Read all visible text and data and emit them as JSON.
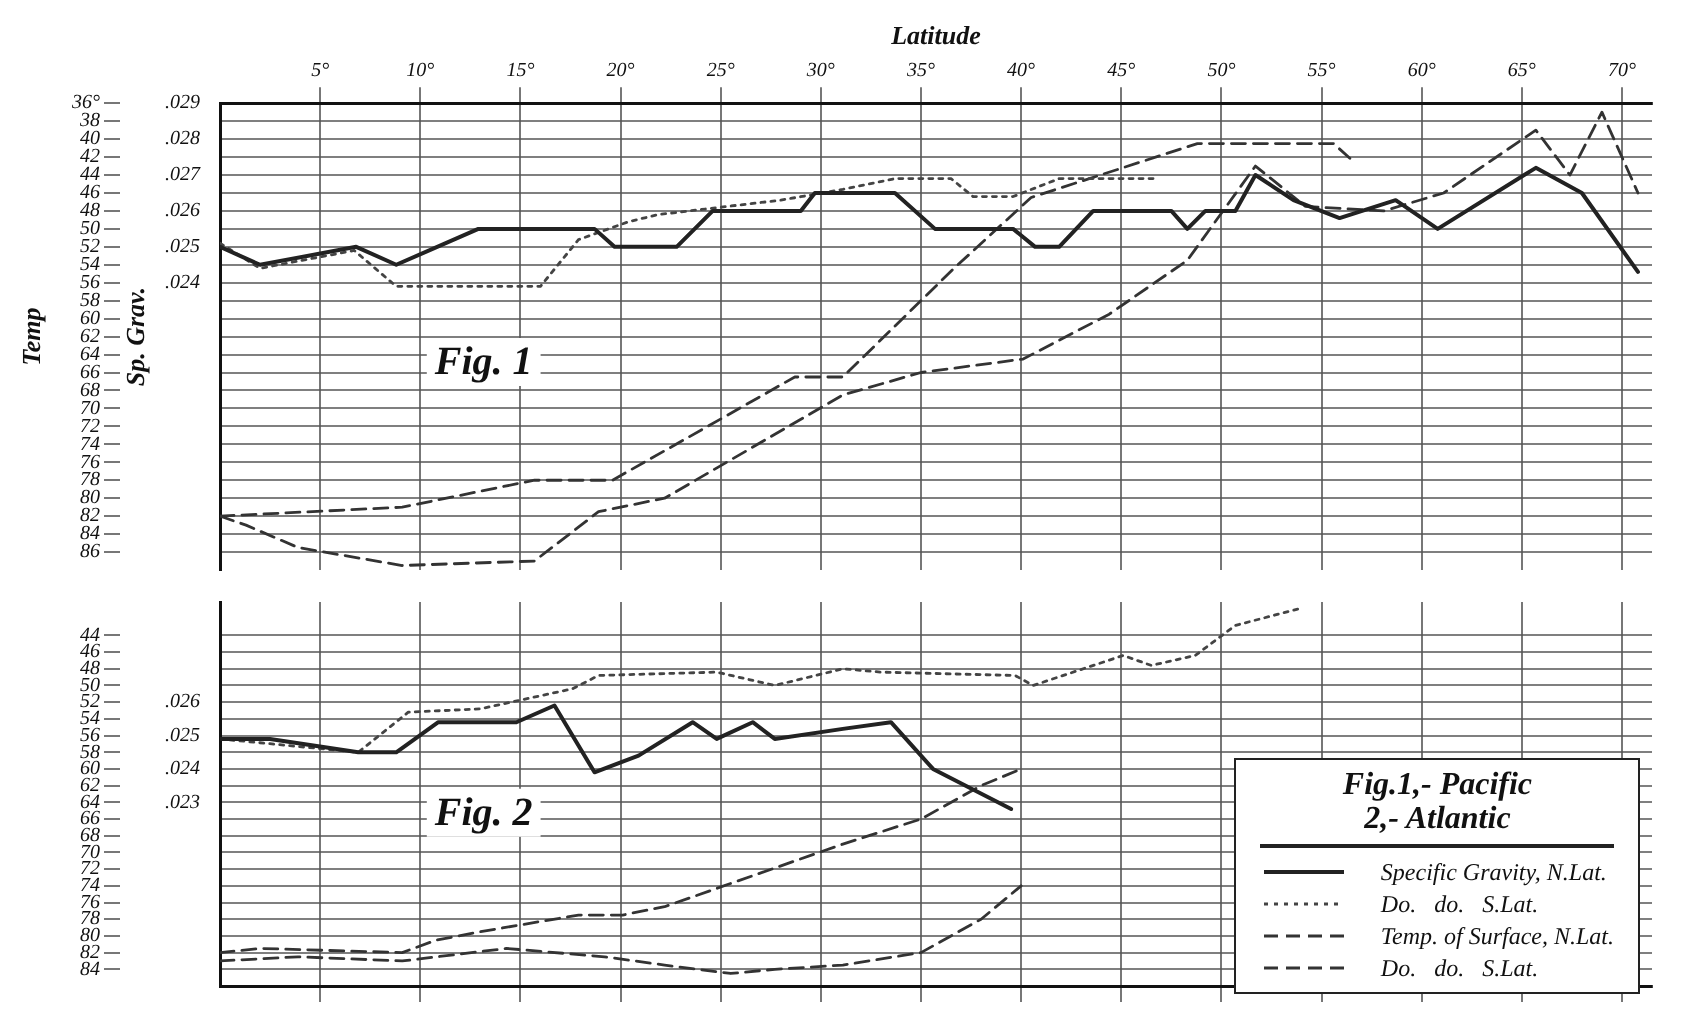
{
  "chart_data": [
    {
      "type": "line",
      "xlabel": "Latitude",
      "ylabel": "Temp",
      "y2label": "Sp. Grav.",
      "annotations": [
        "Fig. 1"
      ],
      "xlim": [
        0,
        71.5
      ],
      "xticks": [
        {
          "value": 5,
          "label": "5°"
        },
        {
          "value": 10,
          "label": "10°"
        },
        {
          "value": 15,
          "label": "15°"
        },
        {
          "value": 20,
          "label": "20°"
        },
        {
          "value": 25,
          "label": "25°"
        },
        {
          "value": 30,
          "label": "30°"
        },
        {
          "value": 35,
          "label": "35°"
        },
        {
          "value": 40,
          "label": "40°"
        },
        {
          "value": 45,
          "label": "45°"
        },
        {
          "value": 50,
          "label": "50°"
        },
        {
          "value": 55,
          "label": "55°"
        },
        {
          "value": 60,
          "label": "60°"
        },
        {
          "value": 65,
          "label": "65°"
        },
        {
          "value": 70,
          "label": "70°"
        }
      ],
      "ylim": [
        88,
        36
      ],
      "yticks": [
        {
          "value": 36,
          "label": "36°"
        },
        38,
        40,
        42,
        44,
        46,
        48,
        50,
        52,
        54,
        56,
        58,
        60,
        62,
        64,
        66,
        68,
        70,
        72,
        74,
        76,
        78,
        80,
        82,
        84,
        86
      ],
      "y2lim": [
        0.016,
        0.029
      ],
      "y2ticks": [
        {
          "value": 0.029,
          "label": ".029"
        },
        {
          "value": 0.028,
          "label": ".028"
        },
        {
          "value": 0.027,
          "label": ".027"
        },
        {
          "value": 0.026,
          "label": ".026"
        },
        {
          "value": 0.025,
          "label": ".025"
        },
        {
          "value": 0.024,
          "label": ".024"
        }
      ],
      "grid": true,
      "marker": "none",
      "legend": false,
      "series": [
        {
          "color": "#222222",
          "line_style": "solid",
          "axis": "y2",
          "x": [
            0,
            2,
            6.8,
            8.8,
            12.9,
            18.7,
            19.7,
            22.8,
            24.6,
            29,
            29.7,
            33.7,
            35.7,
            39.6,
            40.7,
            41.9,
            43.6,
            47.5,
            48.3,
            49.2,
            50.7,
            51.7,
            53.6,
            55.9,
            58.7,
            60.8,
            65.7,
            68,
            70.8
          ],
          "values": [
            0.025,
            0.0245,
            0.025,
            0.0245,
            0.0255,
            0.0255,
            0.025,
            0.025,
            0.026,
            0.026,
            0.0265,
            0.0265,
            0.0255,
            0.0255,
            0.025,
            0.025,
            0.026,
            0.026,
            0.0255,
            0.026,
            0.026,
            0.027,
            0.0263,
            0.0258,
            0.0263,
            0.0255,
            0.0272,
            0.0265,
            0.0243
          ]
        },
        {
          "color": "#444444",
          "line_style": "dotted",
          "axis": "y2",
          "x": [
            0,
            2,
            6.7,
            8.8,
            16,
            17.9,
            20.4,
            21.9,
            28,
            31.1,
            33.7,
            36.5,
            37.6,
            39.6,
            41.9,
            46.6
          ],
          "values": [
            0.0251,
            0.0244,
            0.0249,
            0.0239,
            0.0239,
            0.0252,
            0.0257,
            0.0259,
            0.0263,
            0.0266,
            0.0269,
            0.0269,
            0.0264,
            0.0264,
            0.0269,
            0.0269
          ]
        },
        {
          "color": "#333333",
          "line_style": "dashed",
          "x": [
            0,
            9.1,
            15.7,
            19.6,
            28.7,
            31.1,
            36.6,
            40.5,
            48.8,
            55.6,
            56.6
          ],
          "values": [
            82,
            81,
            78,
            78,
            66.5,
            66.5,
            54.5,
            46.5,
            40.5,
            40.5,
            42.5
          ]
        },
        {
          "color": "#333333",
          "line_style": "dashed",
          "x": [
            0,
            1.3,
            3.9,
            9.1,
            15.7,
            18.9,
            22.2,
            31.1,
            35,
            40.1,
            44.4,
            48.3,
            51.7,
            54.2,
            58.1,
            61.1,
            65.7,
            67.4,
            69,
            70.8
          ],
          "values": [
            82,
            83,
            85.5,
            87.5,
            87,
            81.5,
            80,
            68.5,
            66,
            64.5,
            59.5,
            53.5,
            43,
            47.5,
            48,
            46,
            39,
            44,
            37,
            46
          ]
        }
      ]
    },
    {
      "type": "line",
      "annotations": [
        "Fig. 2"
      ],
      "legend_title": "Fig.1,- Pacific\n2,- Atlantic",
      "legend": "bottom right",
      "tick_labels": "y",
      "xlim": [
        0,
        71.5
      ],
      "xticks": [
        5,
        10,
        15,
        20,
        25,
        30,
        35,
        40,
        45,
        50,
        55,
        60,
        65,
        70
      ],
      "ylim": [
        86,
        40
      ],
      "yticks": [
        44,
        46,
        48,
        50,
        52,
        54,
        56,
        58,
        60,
        62,
        64,
        66,
        68,
        70,
        72,
        74,
        76,
        78,
        80,
        82,
        84
      ],
      "y2lim": [
        0.0175,
        0.029
      ],
      "y2ticks": [
        {
          "value": 0.026,
          "label": ".026"
        },
        {
          "value": 0.025,
          "label": ".025"
        },
        {
          "value": 0.024,
          "label": ".024"
        },
        {
          "value": 0.023,
          "label": ".023"
        }
      ],
      "grid": true,
      "marker": "none",
      "series": [
        {
          "name": "Specific Gravity, N.Lat.",
          "color": "#222222",
          "line_style": "solid",
          "axis": "y2",
          "x": [
            0,
            2.5,
            6.9,
            8.8,
            10.9,
            14.8,
            16.7,
            18.7,
            20.9,
            23.6,
            24.8,
            26.6,
            27.7,
            31.1,
            33.5,
            35.6,
            39.5
          ],
          "values": [
            0.0249,
            0.0249,
            0.0245,
            0.0245,
            0.0254,
            0.0254,
            0.0259,
            0.0239,
            0.0244,
            0.0254,
            0.0249,
            0.0254,
            0.0249,
            0.0252,
            0.0254,
            0.024,
            0.0228
          ]
        },
        {
          "name": "Do.   do.   S.Lat.",
          "color": "#444444",
          "line_style": "dotted",
          "axis": "y2",
          "x": [
            0,
            6.9,
            9.4,
            13,
            17.6,
            18.9,
            24.8,
            27.7,
            31.1,
            33,
            39.7,
            40.6,
            45.1,
            46.5,
            48.7,
            50.7,
            53.9
          ],
          "values": [
            0.0249,
            0.0245,
            0.0257,
            0.0258,
            0.0264,
            0.0268,
            0.0269,
            0.0265,
            0.027,
            0.0269,
            0.0268,
            0.0265,
            0.0274,
            0.0271,
            0.0274,
            0.0283,
            0.0288
          ]
        },
        {
          "name": "Temp. of Surface, N.Lat.",
          "color": "#333333",
          "line_style": "dashed",
          "x": [
            0,
            2,
            9.1,
            10.8,
            13,
            17.9,
            20.1,
            22.2,
            31.1,
            35,
            38,
            40
          ],
          "values": [
            82,
            81.5,
            82,
            80.5,
            79.5,
            77.5,
            77.5,
            76.5,
            69,
            66,
            62,
            60
          ]
        },
        {
          "name": "Do.   do.   S.Lat.",
          "color": "#333333",
          "line_style": "dashed",
          "x": [
            0,
            3.9,
            9.1,
            14.3,
            19.2,
            22.2,
            25.5,
            27.7,
            31.1,
            35,
            38,
            40
          ],
          "values": [
            83,
            82.5,
            83,
            81.5,
            82.5,
            83.5,
            84.5,
            84,
            83.5,
            82,
            78,
            74
          ]
        }
      ]
    }
  ]
}
